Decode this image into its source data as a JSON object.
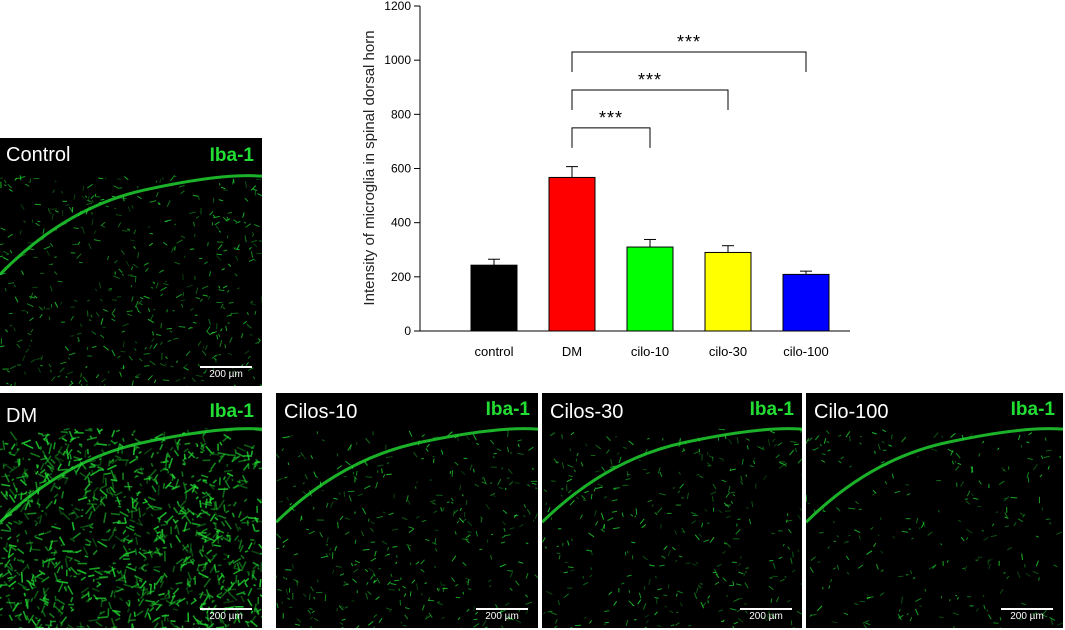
{
  "colors": {
    "tissue_green": "#22dd33",
    "panel_background": "#000000",
    "bar_outline": "#000000",
    "bracket": "#000000"
  },
  "panels": [
    {
      "label": "Control",
      "marker": "Iba-1",
      "scale_text": "200 µm"
    },
    {
      "label": "DM",
      "marker": "Iba-1",
      "scale_text": "200 µm"
    },
    {
      "label": "Cilos-10",
      "marker": "Iba-1",
      "scale_text": "200 µm"
    },
    {
      "label": "Cilos-30",
      "marker": "Iba-1",
      "scale_text": "200 µm"
    },
    {
      "label": "Cilo-100",
      "marker": "Iba-1",
      "scale_text": "200 µm"
    }
  ],
  "chart_data": {
    "type": "bar",
    "categories": [
      "control",
      "DM",
      "cilo-10",
      "cilo-30",
      "cilo-100"
    ],
    "values": [
      243,
      567,
      310,
      290,
      209
    ],
    "errors": [
      22,
      40,
      28,
      25,
      12
    ],
    "colors": [
      "#000000",
      "#ff0000",
      "#00ff00",
      "#ffff00",
      "#0000ff"
    ],
    "ylabel": "Intensity of microglia in spinal dorsal horn",
    "xlabel": "",
    "ylim": [
      0,
      1200
    ],
    "yticks": [
      0,
      200,
      400,
      600,
      800,
      1000,
      1200
    ],
    "grid": false,
    "legend": false,
    "significance": [
      {
        "from": "DM",
        "to": "cilo-10",
        "label": "***",
        "level": 750
      },
      {
        "from": "DM",
        "to": "cilo-30",
        "label": "***",
        "level": 890
      },
      {
        "from": "DM",
        "to": "cilo-100",
        "label": "***",
        "level": 1030
      }
    ]
  }
}
